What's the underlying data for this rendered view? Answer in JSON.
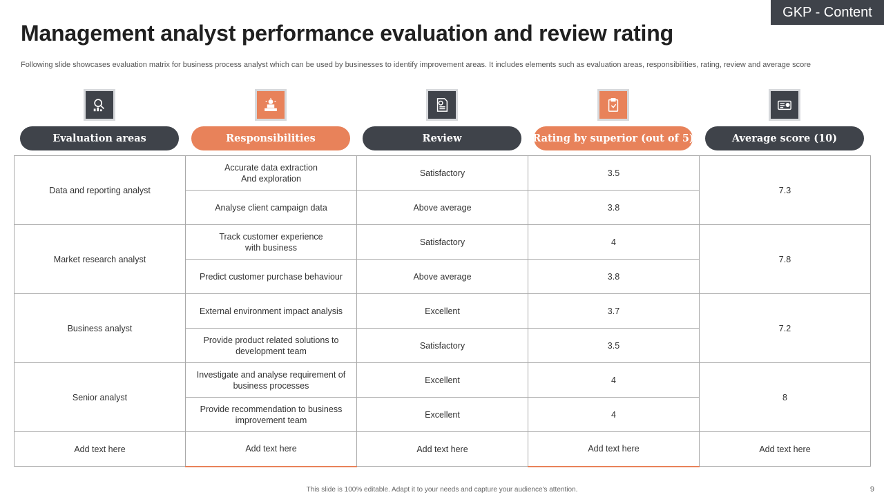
{
  "badge": "GKP - Content",
  "title": "Management analyst performance evaluation and review rating",
  "subtitle": "Following slide showcases evaluation matrix for business process analyst which can be used by businesses to identify improvement areas. It includes elements such as evaluation areas, responsibilities, rating, review and average score",
  "columns": [
    {
      "label": "Evaluation areas",
      "icon": "analytics-search-icon",
      "color": "#3f434a"
    },
    {
      "label": "Responsibilities",
      "icon": "podium-icon",
      "color": "#e8825a"
    },
    {
      "label": "Review",
      "icon": "report-document-icon",
      "color": "#3f434a"
    },
    {
      "label": "Rating by superior (out of 5)",
      "icon": "clipboard-icon",
      "color": "#e8825a"
    },
    {
      "label": "Average score (10)",
      "icon": "id-card-icon",
      "color": "#3f434a"
    }
  ],
  "rows": [
    {
      "area": "Data and reporting  analyst",
      "average": "7.3",
      "items": [
        {
          "responsibility": [
            "Accurate data extraction",
            "And exploration"
          ],
          "review": "Satisfactory",
          "rating": "3.5"
        },
        {
          "responsibility": [
            "Analyse client campaign  data"
          ],
          "review": "Above  average",
          "rating": "3.8"
        }
      ]
    },
    {
      "area": "Market research  analyst",
      "average": "7.8",
      "items": [
        {
          "responsibility": [
            "Track customer experience",
            "with business"
          ],
          "review": "Satisfactory",
          "rating": "4"
        },
        {
          "responsibility": [
            "Predict customer purchase behaviour"
          ],
          "review": "Above  average",
          "rating": "3.8"
        }
      ]
    },
    {
      "area": "Business analyst",
      "average": "7.2",
      "items": [
        {
          "responsibility": [
            "External environment  impact analysis"
          ],
          "review": "Excellent",
          "rating": "3.7"
        },
        {
          "responsibility": [
            "Provide  product related  solutions to",
            "development  team"
          ],
          "review": "Satisfactory",
          "rating": "3.5"
        }
      ]
    },
    {
      "area": "Senior analyst",
      "average": "8",
      "items": [
        {
          "responsibility": [
            "Investigate  and analyse requirement  of",
            "business processes"
          ],
          "review": "Excellent",
          "rating": "4"
        },
        {
          "responsibility": [
            "Provide  recommendation to business",
            "improvement  team"
          ],
          "review": "Excellent",
          "rating": "4"
        }
      ]
    }
  ],
  "add_row": [
    "Add text here",
    "Add text here",
    "Add text here",
    "Add text here",
    "Add text here"
  ],
  "footer": "This slide is 100% editable.  Adapt it to your needs and capture your audience's attention.",
  "page_number": "9"
}
